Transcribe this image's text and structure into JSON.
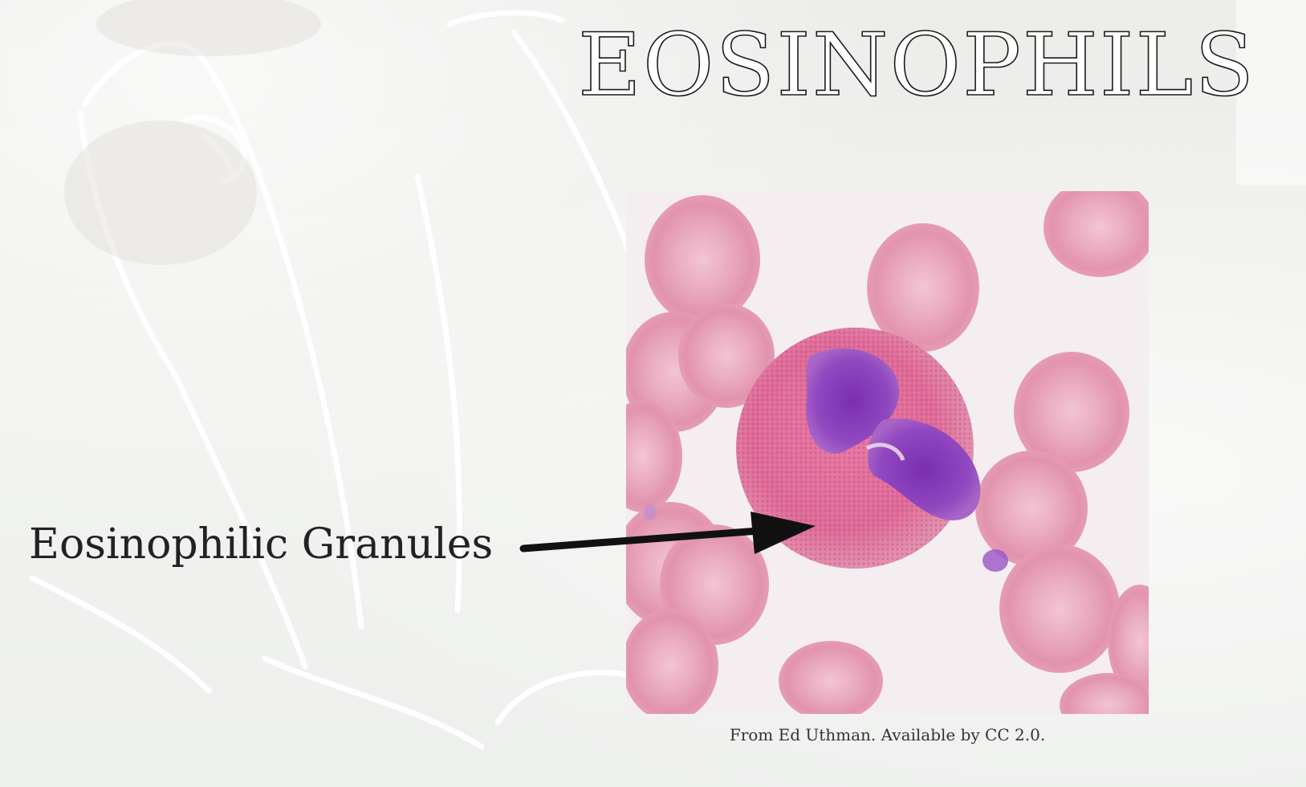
{
  "slide": {
    "title": "EOSINOPHILS",
    "label": "Eosinophilic Granules",
    "caption": "From Ed Uthman. Available by CC 2.0."
  },
  "colors": {
    "background": "#eeeeec",
    "title_fill": "#ffffff",
    "title_outline": "#1a1a1a",
    "text": "#222222",
    "red_cell": "#e89ab2",
    "eosinophil_cytoplasm": "#e0709a",
    "nucleus": "#8a3fb8",
    "micrograph_background": "#f4eef0"
  },
  "icons": [
    "watercolor-sketch-background",
    "micrograph-image",
    "pointer-arrow"
  ]
}
